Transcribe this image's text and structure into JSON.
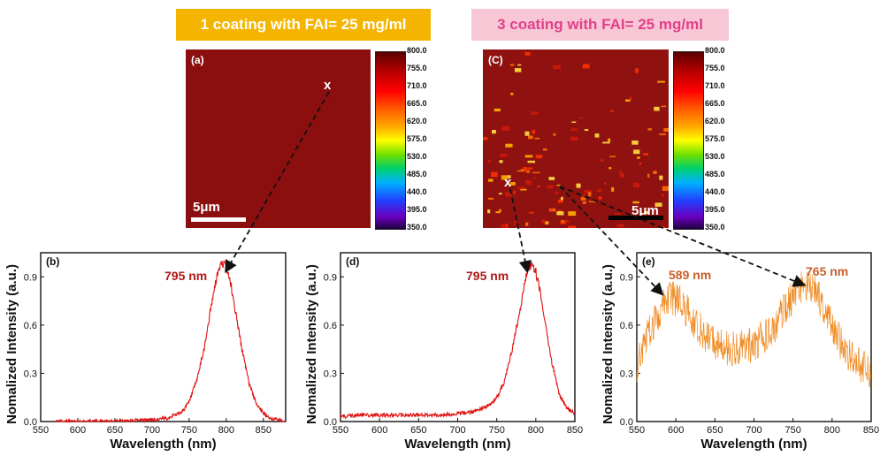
{
  "banners": {
    "left": "1 coating with FAI= 25 mg/ml",
    "right": "3 coating with FAI= 25 mg/ml"
  },
  "maps": {
    "a": {
      "label": "(a)",
      "scale": "5μm",
      "marker": "x"
    },
    "c": {
      "label": "(C)",
      "scale": "5μm",
      "marker": "x"
    },
    "colorbar_ticks": [
      "800.0",
      "755.0",
      "710.0",
      "665.0",
      "620.0",
      "575.0",
      "530.0",
      "485.0",
      "440.0",
      "395.0",
      "350.0"
    ],
    "colorbar_range": [
      350,
      800
    ]
  },
  "colors": {
    "red_curve": "#e01010",
    "orange_curve": "#f08a20",
    "peak_red": "#b01818",
    "peak_orange": "#c8602a"
  },
  "chart_data": [
    {
      "id": "b",
      "type": "line",
      "panel_label": "(b)",
      "xlabel": "Wavelength (nm)",
      "ylabel": "Nomalized Intensity (a.u.)",
      "xlim": [
        550,
        880
      ],
      "ylim": [
        0,
        1.05
      ],
      "xticks": [
        550,
        600,
        650,
        700,
        750,
        800,
        850
      ],
      "yticks": [
        0.0,
        0.3,
        0.6,
        0.9
      ],
      "ytick_labels": [
        "0.0",
        "0.3",
        "0.6",
        "0.9"
      ],
      "peak_label": "795 nm",
      "series": [
        {
          "color": "#e01010",
          "x": [
            570,
            600,
            650,
            700,
            720,
            740,
            750,
            760,
            770,
            780,
            785,
            790,
            795,
            800,
            805,
            810,
            820,
            830,
            840,
            850,
            860,
            870,
            880
          ],
          "y": [
            0.0,
            0.0,
            0.005,
            0.01,
            0.02,
            0.06,
            0.12,
            0.25,
            0.45,
            0.72,
            0.85,
            0.95,
            0.99,
            0.96,
            0.88,
            0.75,
            0.48,
            0.25,
            0.12,
            0.05,
            0.02,
            0.01,
            0.0
          ]
        }
      ]
    },
    {
      "id": "d",
      "type": "line",
      "panel_label": "(d)",
      "xlabel": "Wavelength (nm)",
      "ylabel": "Nomalized Intensity (a.u.)",
      "xlim": [
        550,
        850
      ],
      "ylim": [
        0,
        1.05
      ],
      "xticks": [
        550,
        600,
        650,
        700,
        750,
        800,
        850
      ],
      "yticks": [
        0.0,
        0.3,
        0.6,
        0.9
      ],
      "ytick_labels": [
        "0.0",
        "0.3",
        "0.6",
        "0.9"
      ],
      "peak_label": "795 nm",
      "series": [
        {
          "color": "#e01010",
          "x": [
            550,
            575,
            600,
            625,
            650,
            675,
            700,
            720,
            740,
            750,
            760,
            770,
            780,
            785,
            790,
            795,
            800,
            805,
            810,
            820,
            830,
            840,
            850
          ],
          "y": [
            0.03,
            0.04,
            0.04,
            0.04,
            0.04,
            0.04,
            0.05,
            0.06,
            0.1,
            0.15,
            0.25,
            0.45,
            0.7,
            0.84,
            0.95,
            0.98,
            0.93,
            0.82,
            0.66,
            0.38,
            0.17,
            0.08,
            0.05
          ]
        }
      ]
    },
    {
      "id": "e",
      "type": "line",
      "panel_label": "(e)",
      "xlabel": "Wavelength (nm)",
      "ylabel": "Nomalized Intensity (a.u.)",
      "xlim": [
        550,
        850
      ],
      "ylim": [
        0,
        1.05
      ],
      "xticks": [
        550,
        600,
        650,
        700,
        750,
        800,
        850
      ],
      "yticks": [
        0.0,
        0.3,
        0.6,
        0.9
      ],
      "ytick_labels": [
        "0.0",
        "0.3",
        "0.6",
        "0.9"
      ],
      "peak_labels": [
        "589 nm",
        "765 nm"
      ],
      "series": [
        {
          "color": "#f08a20",
          "x": [
            550,
            560,
            570,
            580,
            590,
            600,
            610,
            620,
            630,
            640,
            650,
            660,
            670,
            680,
            690,
            700,
            710,
            720,
            730,
            740,
            750,
            760,
            770,
            780,
            790,
            800,
            810,
            820,
            830,
            840,
            850
          ],
          "y": [
            0.35,
            0.5,
            0.6,
            0.7,
            0.78,
            0.76,
            0.72,
            0.64,
            0.58,
            0.52,
            0.48,
            0.46,
            0.45,
            0.46,
            0.47,
            0.48,
            0.52,
            0.56,
            0.62,
            0.7,
            0.78,
            0.83,
            0.85,
            0.8,
            0.7,
            0.6,
            0.5,
            0.43,
            0.38,
            0.34,
            0.3
          ]
        }
      ]
    }
  ]
}
